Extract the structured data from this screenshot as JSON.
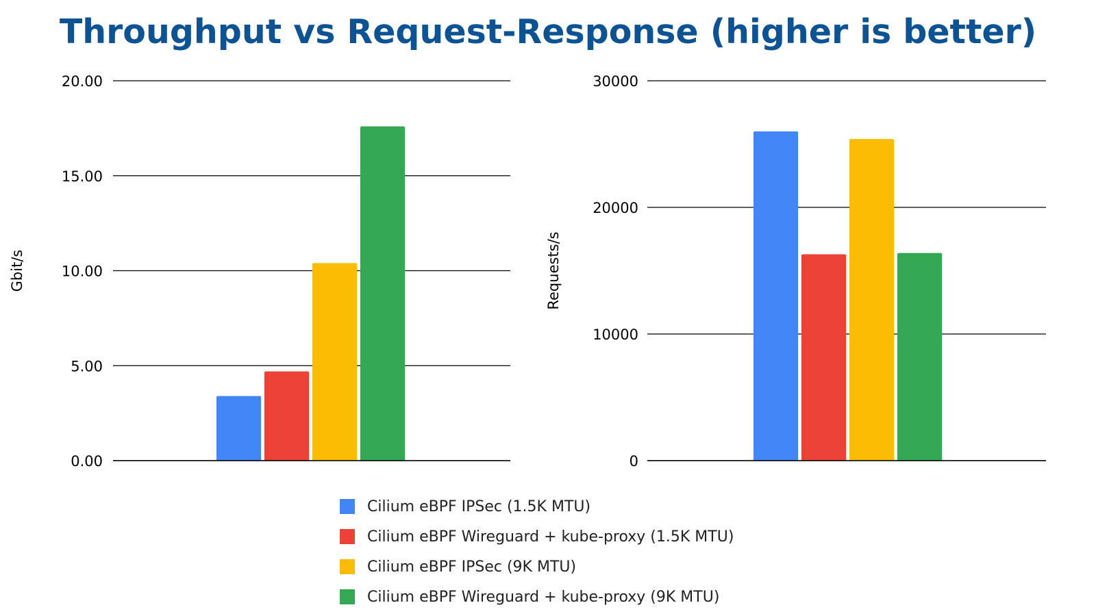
{
  "title": "Throughput vs Request-Response (higher is better)",
  "colors": {
    "title": "#0b5394",
    "series": [
      "#4285f4",
      "#ea4335",
      "#fbbc04",
      "#34a853"
    ]
  },
  "legend": {
    "position": "bottom",
    "items": [
      {
        "label": "Cilium eBPF IPSec (1.5K MTU)",
        "color": "#4285f4"
      },
      {
        "label": "Cilium eBPF Wireguard + kube-proxy (1.5K MTU)",
        "color": "#ea4335"
      },
      {
        "label": "Cilium eBPF IPSec (9K MTU)",
        "color": "#fbbc04"
      },
      {
        "label": "Cilium eBPF Wireguard + kube-proxy (9K MTU)",
        "color": "#34a853"
      }
    ]
  },
  "chart_data": [
    {
      "type": "bar",
      "ylabel": "Gbit/s",
      "ylim": [
        0,
        20
      ],
      "yticks": [
        "0.00",
        "5.00",
        "10.00",
        "15.00",
        "20.00"
      ],
      "ytick_values": [
        0,
        5,
        10,
        15,
        20
      ],
      "grid": true,
      "series": [
        {
          "name": "Cilium eBPF IPSec (1.5K MTU)",
          "value": 3.4
        },
        {
          "name": "Cilium eBPF Wireguard + kube-proxy (1.5K MTU)",
          "value": 4.7
        },
        {
          "name": "Cilium eBPF IPSec (9K MTU)",
          "value": 10.4
        },
        {
          "name": "Cilium eBPF Wireguard + kube-proxy (9K MTU)",
          "value": 17.6
        }
      ]
    },
    {
      "type": "bar",
      "ylabel": "Requests/s",
      "ylim": [
        0,
        30000
      ],
      "yticks": [
        "0",
        "10000",
        "20000",
        "30000"
      ],
      "ytick_values": [
        0,
        10000,
        20000,
        30000
      ],
      "grid": true,
      "series": [
        {
          "name": "Cilium eBPF IPSec (1.5K MTU)",
          "value": 26000
        },
        {
          "name": "Cilium eBPF Wireguard + kube-proxy (1.5K MTU)",
          "value": 16300
        },
        {
          "name": "Cilium eBPF IPSec (9K MTU)",
          "value": 25400
        },
        {
          "name": "Cilium eBPF Wireguard + kube-proxy (9K MTU)",
          "value": 16400
        }
      ]
    }
  ]
}
